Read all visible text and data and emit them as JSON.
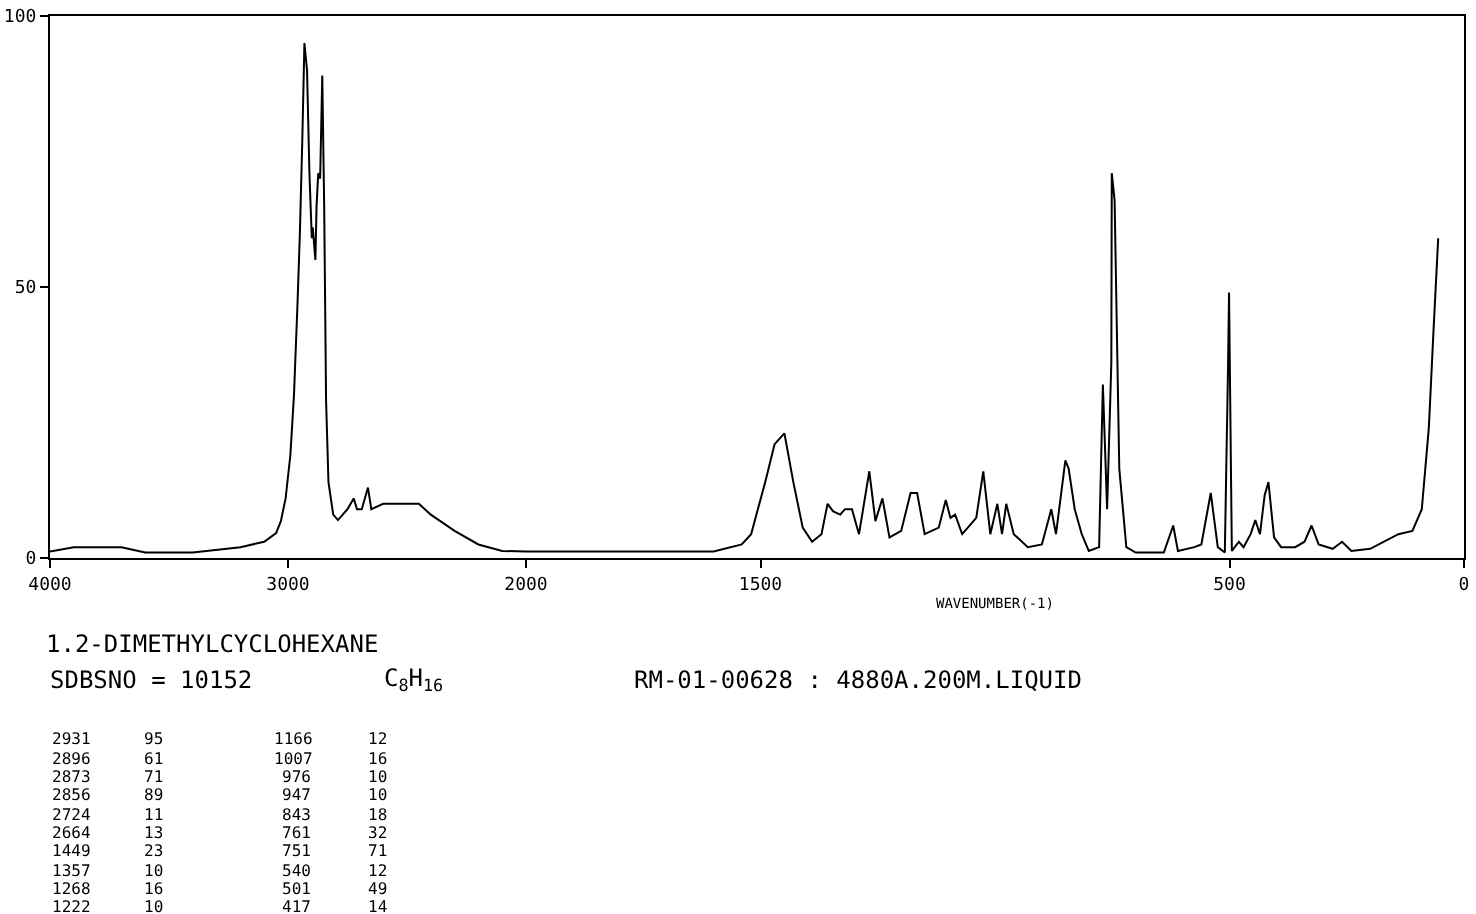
{
  "chart_data": [
    {
      "type": "line",
      "title": "1.2-DIMETHYLCYCLOHEXANE",
      "annotations": [
        "SDBSNO = 10152",
        "C$_{8}$H$_{16}$",
        "RM-01-00628 : 4880A.200M.LIQUID",
        "2931 95 1166 12",
        "2896 61 1007 16",
        "2873 71 976 10",
        "2856 89 947 10",
        "2724 11 843 18",
        "2664 13 761 32",
        "1449 23 751 71",
        "1357 10 540 12",
        "1268 16 501 49",
        "1222 10 417 14"
      ],
      "x": [
        4000,
        3900,
        3700,
        3600,
        3400,
        3200,
        3100,
        3050,
        3030,
        3010,
        2990,
        2975,
        2960,
        2950,
        2940,
        2931,
        2920,
        2910,
        2900,
        2896,
        2885,
        2880,
        2873,
        2865,
        2856,
        2848,
        2840,
        2830,
        2810,
        2790,
        2770,
        2750,
        2724,
        2710,
        2690,
        2664,
        2650,
        2600,
        2500,
        2450,
        2400,
        2300,
        2200,
        2100,
        2000
      ],
      "series": [
        {
          "color": "#000000",
          "values": [
            1.2,
            2,
            2,
            1,
            1,
            2,
            3,
            4.6,
            6.8,
            11,
            19,
            30,
            47,
            60,
            77,
            95,
            90,
            71,
            59,
            61,
            55,
            65,
            71,
            70,
            89,
            65,
            29,
            14,
            8,
            7,
            8,
            9,
            11,
            9,
            9,
            13,
            9,
            10,
            10,
            10,
            8,
            5,
            2.5,
            1.3,
            1.2
          ]
        }
      ],
      "xlim": [
        4000,
        2000
      ],
      "xticks": [
        4000,
        3000,
        2000
      ],
      "ylim": [
        0,
        100
      ],
      "yticks": [
        0,
        50,
        100
      ],
      "marker": "none",
      "line_style": "solid"
    },
    {
      "type": "line",
      "xlabel": "WAVENUMBER(-1)",
      "x": [
        2000,
        1600,
        1540,
        1520,
        1490,
        1470,
        1449,
        1430,
        1410,
        1390,
        1370,
        1357,
        1345,
        1330,
        1320,
        1305,
        1290,
        1268,
        1255,
        1240,
        1225,
        1200,
        1180,
        1166,
        1150,
        1120,
        1105,
        1095,
        1085,
        1070,
        1040,
        1025,
        1010,
        995,
        985,
        976,
        960,
        930,
        900,
        880,
        870,
        850,
        843,
        830,
        815,
        800,
        778,
        770,
        761,
        752,
        751,
        745,
        735,
        720,
        700,
        640,
        620,
        610,
        575,
        560,
        540,
        525,
        510,
        503,
        501,
        495,
        480,
        470,
        455,
        445,
        435,
        425,
        417,
        405,
        390,
        360,
        340,
        325,
        310,
        280,
        260,
        240,
        200,
        140,
        110,
        90,
        75,
        65,
        55
      ],
      "series": [
        {
          "color": "#000000",
          "values": [
            1.2,
            1.2,
            2.5,
            4.4,
            14,
            21,
            23,
            14,
            5.6,
            3,
            4.4,
            10,
            8.6,
            8,
            9,
            9,
            4.4,
            16,
            6.8,
            11,
            3.8,
            5,
            12,
            12,
            4.4,
            5.6,
            10.7,
            7.4,
            8,
            4.4,
            7.4,
            16,
            4.4,
            10,
            4.4,
            10,
            4.4,
            2,
            2.5,
            9,
            4.4,
            18,
            16.5,
            9,
            4.4,
            1.3,
            2,
            32,
            9,
            36,
            71,
            66,
            16.5,
            2,
            1,
            1,
            6,
            1.3,
            2,
            2.5,
            12,
            2,
            1,
            36,
            49,
            1.3,
            3,
            2,
            4.4,
            7,
            4.4,
            11.6,
            14,
            3.8,
            2,
            2,
            3,
            6,
            2.5,
            1.7,
            3,
            1.3,
            1.7,
            4.4,
            5,
            9,
            24,
            42,
            59
          ]
        }
      ],
      "xlim": [
        2000,
        0
      ],
      "xticks": [
        1500,
        500,
        0
      ],
      "ylim": [
        0,
        100
      ],
      "tick_labels": "x",
      "marker": "none",
      "line_style": "solid"
    }
  ]
}
